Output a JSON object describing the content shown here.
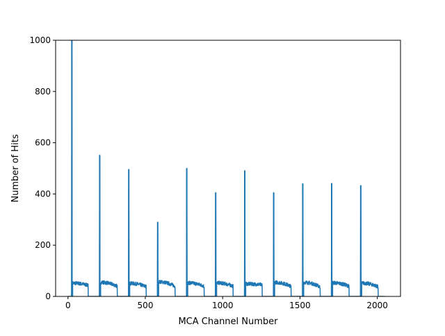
{
  "chart_data": {
    "type": "line",
    "title": "",
    "xlabel": "MCA Channel Number",
    "ylabel": "Number of Hits",
    "xlim": [
      -80,
      2150
    ],
    "ylim": [
      0,
      1000
    ],
    "xticks": [
      0,
      500,
      1000,
      1500,
      2000
    ],
    "yticks": [
      0,
      200,
      400,
      600,
      800,
      1000
    ],
    "grid": false,
    "legend": "none",
    "line_color": "#1f77b4",
    "segments": [
      {
        "peak_x": 25,
        "peak_y": 1000,
        "tail_start": 30,
        "tail_end": 130,
        "tail_level": 57,
        "tail_end_level": 48
      },
      {
        "peak_x": 205,
        "peak_y": 551,
        "tail_start": 211,
        "tail_end": 318,
        "tail_level": 60,
        "tail_end_level": 45
      },
      {
        "peak_x": 393,
        "peak_y": 496,
        "tail_start": 399,
        "tail_end": 505,
        "tail_level": 56,
        "tail_end_level": 43
      },
      {
        "peak_x": 580,
        "peak_y": 290,
        "tail_start": 586,
        "tail_end": 692,
        "tail_level": 62,
        "tail_end_level": 45
      },
      {
        "peak_x": 768,
        "peak_y": 500,
        "tail_start": 774,
        "tail_end": 880,
        "tail_level": 58,
        "tail_end_level": 45
      },
      {
        "peak_x": 955,
        "peak_y": 405,
        "tail_start": 961,
        "tail_end": 1067,
        "tail_level": 58,
        "tail_end_level": 45
      },
      {
        "peak_x": 1143,
        "peak_y": 491,
        "tail_start": 1149,
        "tail_end": 1255,
        "tail_level": 54,
        "tail_end_level": 50
      },
      {
        "peak_x": 1330,
        "peak_y": 405,
        "tail_start": 1336,
        "tail_end": 1442,
        "tail_level": 60,
        "tail_end_level": 44
      },
      {
        "peak_x": 1518,
        "peak_y": 440,
        "tail_start": 1524,
        "tail_end": 1630,
        "tail_level": 60,
        "tail_end_level": 42
      },
      {
        "peak_x": 1705,
        "peak_y": 441,
        "tail_start": 1711,
        "tail_end": 1817,
        "tail_level": 58,
        "tail_end_level": 45
      },
      {
        "peak_x": 1893,
        "peak_y": 433,
        "tail_start": 1899,
        "tail_end": 2005,
        "tail_level": 57,
        "tail_end_level": 43
      }
    ],
    "baseline_end_x": 2047
  }
}
